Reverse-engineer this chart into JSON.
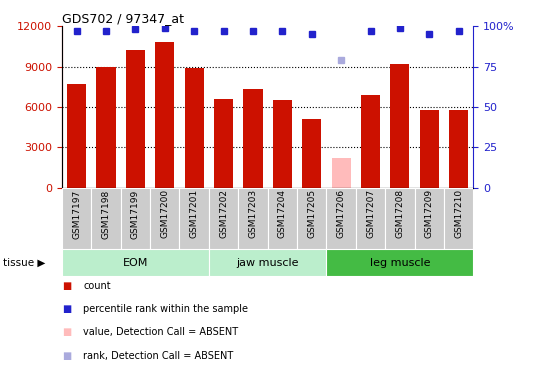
{
  "title": "GDS702 / 97347_at",
  "samples": [
    "GSM17197",
    "GSM17198",
    "GSM17199",
    "GSM17200",
    "GSM17201",
    "GSM17202",
    "GSM17203",
    "GSM17204",
    "GSM17205",
    "GSM17206",
    "GSM17207",
    "GSM17208",
    "GSM17209",
    "GSM17210"
  ],
  "counts": [
    7700,
    9000,
    10200,
    10800,
    8900,
    6600,
    7300,
    6500,
    5100,
    2200,
    6900,
    9200,
    5800,
    5800
  ],
  "absent": [
    false,
    false,
    false,
    false,
    false,
    false,
    false,
    false,
    false,
    true,
    false,
    false,
    false,
    false
  ],
  "percentile_ranks": [
    97,
    97,
    98,
    99,
    97,
    97,
    97,
    97,
    95,
    79,
    97,
    99,
    95,
    97
  ],
  "absent_rank": [
    false,
    false,
    false,
    false,
    false,
    false,
    false,
    false,
    false,
    true,
    false,
    false,
    false,
    false
  ],
  "group_defs": [
    {
      "label": "EOM",
      "start": 0,
      "end": 4,
      "color": "#bbeecc"
    },
    {
      "label": "jaw muscle",
      "start": 5,
      "end": 8,
      "color": "#bbeecc"
    },
    {
      "label": "leg muscle",
      "start": 9,
      "end": 13,
      "color": "#44bb44"
    }
  ],
  "bar_color_normal": "#cc1100",
  "bar_color_absent": "#ffbbbb",
  "rank_color_normal": "#2222cc",
  "rank_color_absent": "#aaaadd",
  "ylim_left": [
    0,
    12000
  ],
  "ylim_right": [
    0,
    100
  ],
  "yticks_left": [
    0,
    3000,
    6000,
    9000,
    12000
  ],
  "yticks_right": [
    0,
    25,
    50,
    75,
    100
  ],
  "grid_vals": [
    3000,
    6000,
    9000
  ],
  "bg_xticklabel": "#cccccc"
}
